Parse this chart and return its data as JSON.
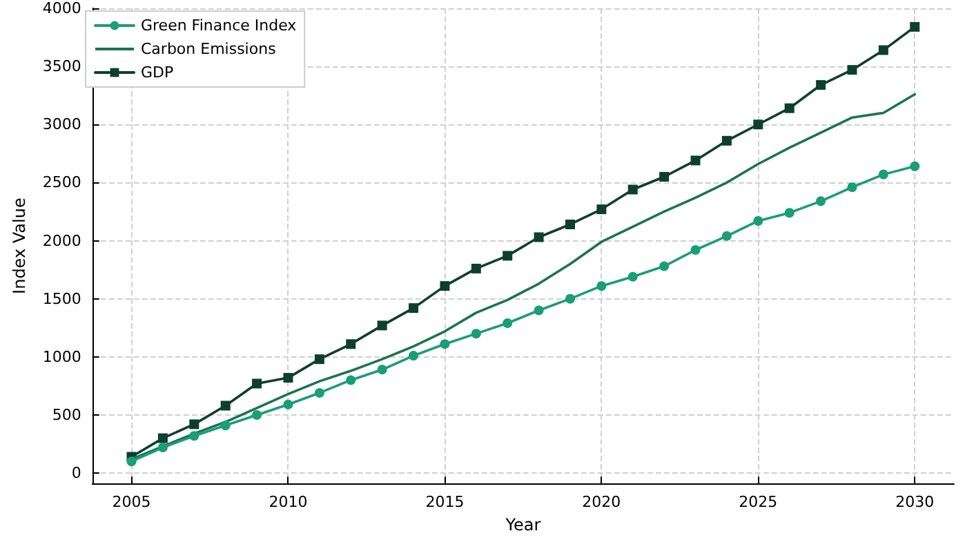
{
  "chart_data": {
    "type": "line",
    "xlabel": "Year",
    "ylabel": "Index Value",
    "x": [
      2005,
      2006,
      2007,
      2008,
      2009,
      2010,
      2011,
      2012,
      2013,
      2014,
      2015,
      2016,
      2017,
      2018,
      2019,
      2020,
      2021,
      2022,
      2023,
      2024,
      2025,
      2026,
      2027,
      2028,
      2029,
      2030
    ],
    "series": [
      {
        "name": "Green Finance Index",
        "color": "#1a9e77",
        "marker": "circle",
        "values": [
          100,
          220,
          320,
          410,
          500,
          590,
          690,
          800,
          890,
          1010,
          1110,
          1200,
          1290,
          1400,
          1500,
          1610,
          1690,
          1780,
          1920,
          2040,
          2170,
          2240,
          2340,
          2460,
          2570,
          2640
        ]
      },
      {
        "name": "Carbon Emissions",
        "color": "#1b7452",
        "marker": "none",
        "values": [
          120,
          230,
          340,
          440,
          560,
          680,
          790,
          880,
          980,
          1090,
          1220,
          1380,
          1490,
          1630,
          1800,
          1990,
          2120,
          2250,
          2370,
          2500,
          2660,
          2800,
          2930,
          3060,
          3100,
          3260
        ]
      },
      {
        "name": "GDP",
        "color": "#0e3f2e",
        "marker": "square",
        "values": [
          140,
          300,
          420,
          580,
          770,
          820,
          980,
          1110,
          1270,
          1420,
          1610,
          1760,
          1870,
          2030,
          2140,
          2270,
          2440,
          2550,
          2690,
          2860,
          3000,
          3140,
          3340,
          3470,
          3640,
          3840
        ]
      }
    ],
    "xlim": [
      2003.75,
      2031.25
    ],
    "xticks": [
      2005,
      2010,
      2015,
      2020,
      2025,
      2030
    ],
    "ylim": [
      -90,
      4000
    ],
    "yticks": [
      0,
      500,
      1000,
      1500,
      2000,
      2500,
      3000,
      3500,
      4000
    ],
    "grid": true,
    "legend": "top left",
    "line_style": "solid"
  }
}
